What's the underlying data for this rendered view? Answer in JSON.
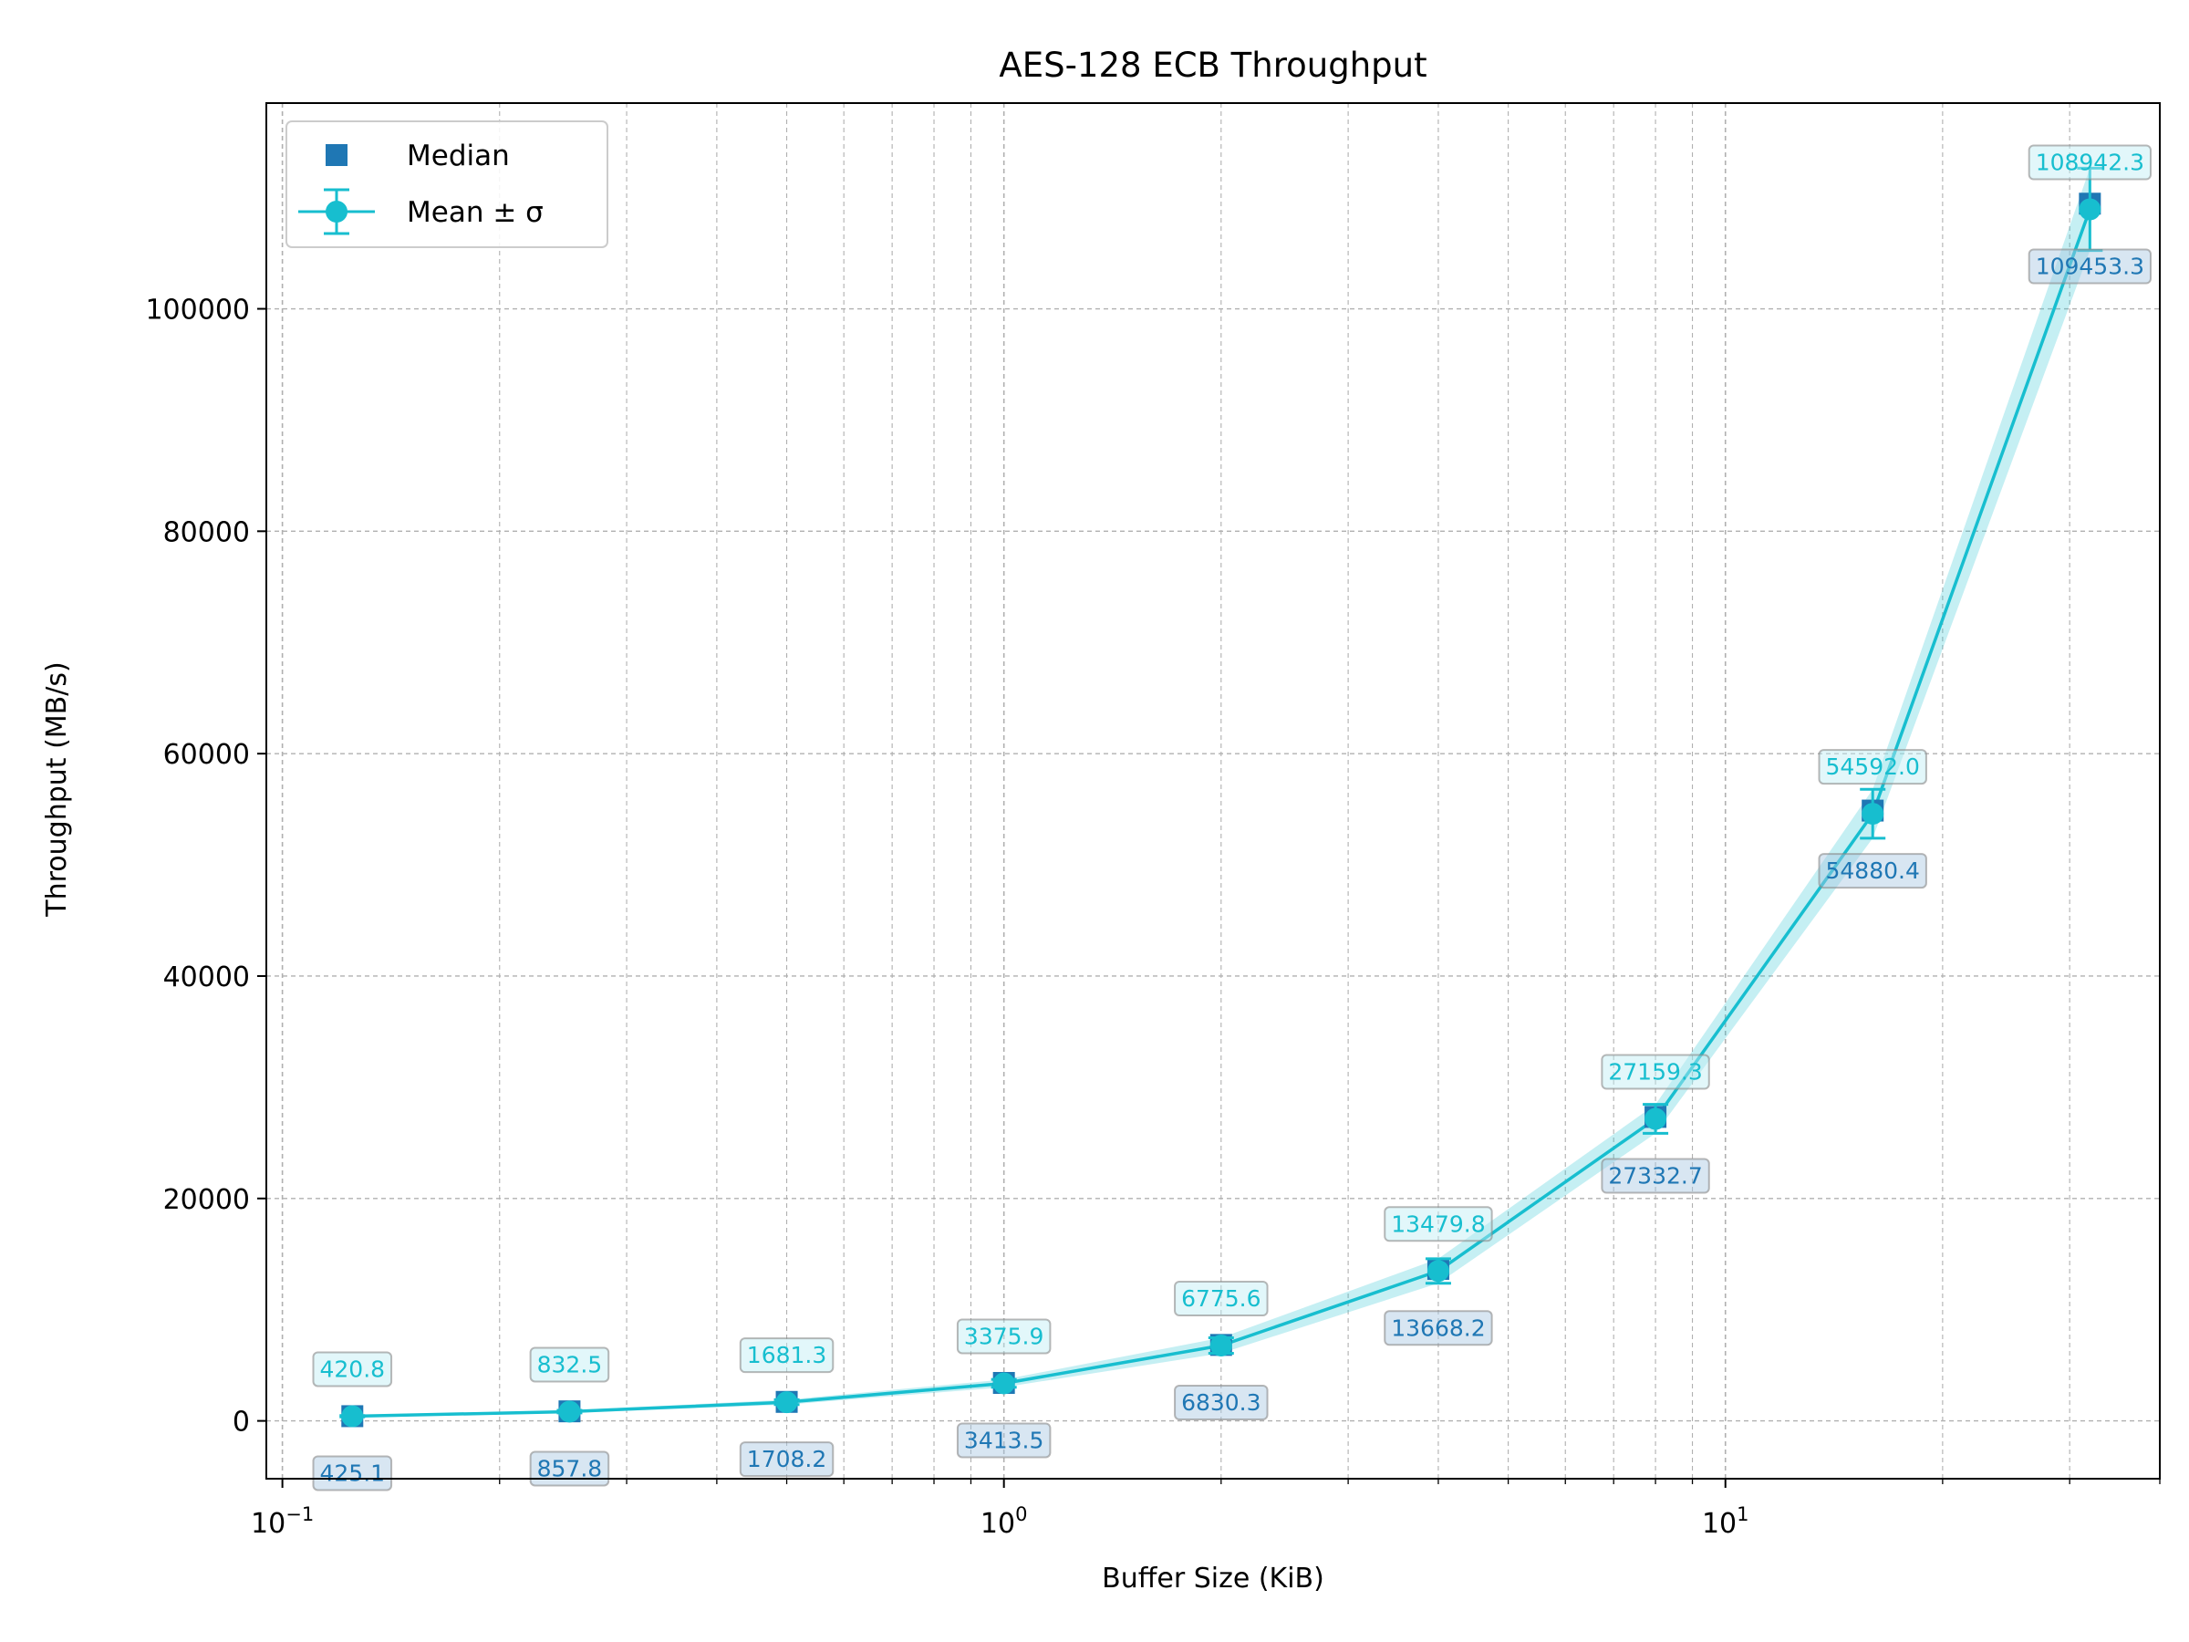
{
  "chart_data": {
    "type": "line",
    "title": "AES-128 ECB Throughput",
    "xlabel": "Buffer Size (KiB)",
    "ylabel": "Throughput (MB/s)",
    "x_scale": "log",
    "xlim": [
      0.095,
      40
    ],
    "ylim": [
      -5200,
      118500
    ],
    "x": [
      0.125,
      0.25,
      0.5,
      1,
      2,
      4,
      8,
      16,
      32
    ],
    "series": [
      {
        "name": "Median",
        "marker": "square",
        "color": "#1f77b4",
        "values": [
          425.1,
          857.8,
          1708.2,
          3413.5,
          6830.3,
          13668.2,
          27332.7,
          54880.4,
          109453.3
        ],
        "labels": [
          "425.1",
          "857.8",
          "1708.2",
          "3413.5",
          "6830.3",
          "13668.2",
          "27332.7",
          "54880.4",
          "109453.3"
        ]
      },
      {
        "name": "Mean ± σ",
        "marker": "circle",
        "color": "#17becf",
        "values": [
          420.8,
          832.5,
          1681.3,
          3375.9,
          6775.6,
          13479.8,
          27159.3,
          54592.0,
          108942.3
        ],
        "std": [
          60,
          120,
          220,
          350,
          700,
          1100,
          1300,
          2200,
          3700
        ],
        "labels": [
          "420.8",
          "832.5",
          "1681.3",
          "3375.9",
          "6775.6",
          "13479.8",
          "27159.3",
          "54592.0",
          "108942.3"
        ]
      }
    ],
    "x_tick_labels": [
      "10",
      "10",
      "10"
    ],
    "x_tick_exponents": [
      "−1",
      "0",
      "1"
    ],
    "y_ticks": [
      0,
      20000,
      40000,
      60000,
      80000,
      100000
    ],
    "y_tick_labels": [
      "0",
      "20000",
      "40000",
      "60000",
      "80000",
      "100000"
    ],
    "grid": true,
    "legend_position": "upper left"
  }
}
